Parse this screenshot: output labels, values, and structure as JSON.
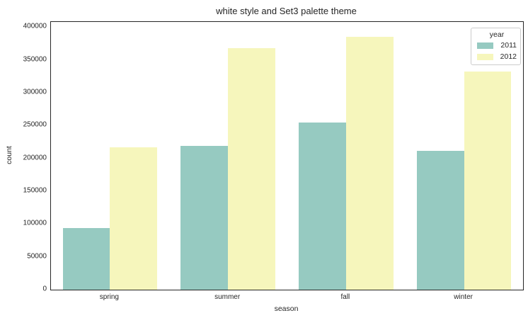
{
  "chart_data": {
    "type": "bar",
    "title": "white style and Set3 palette theme",
    "xlabel": "season",
    "ylabel": "count",
    "categories": [
      "spring",
      "summer",
      "fall",
      "winter"
    ],
    "series": [
      {
        "name": "2011",
        "color": "#96cac1",
        "values": [
          94000,
          219000,
          255000,
          212000
        ]
      },
      {
        "name": "2012",
        "color": "#f6f6bc",
        "values": [
          217000,
          368000,
          385000,
          332000
        ]
      }
    ],
    "ylim": [
      0,
      408000
    ],
    "yticks": [
      0,
      50000,
      100000,
      150000,
      200000,
      250000,
      300000,
      350000,
      400000
    ],
    "legend_title": "year",
    "legend_position": "upper right",
    "grid": false,
    "axes_box": true,
    "spine_color": "#262626",
    "text_color": "#262626",
    "background_color": "#ffffff"
  }
}
